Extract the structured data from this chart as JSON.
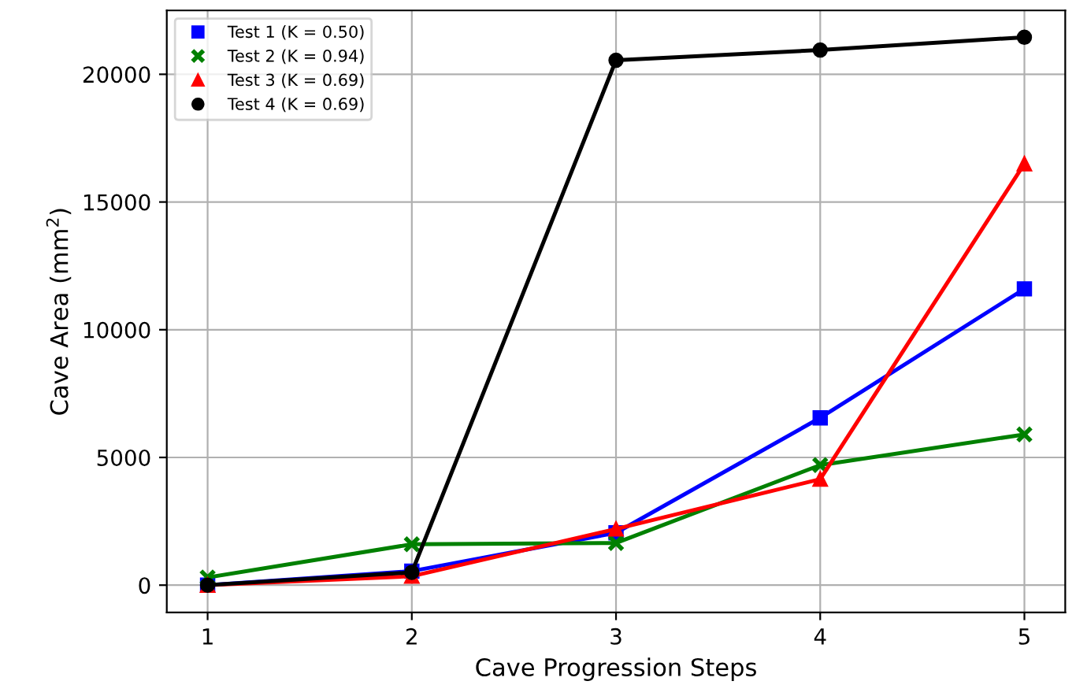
{
  "chart_data": {
    "type": "line",
    "xlabel": "Cave Progression Steps",
    "ylabel": "Cave Area (mm$^{2}$)",
    "x": [
      1,
      2,
      3,
      4,
      5
    ],
    "xlim": [
      0.8,
      5.2
    ],
    "xticks": [
      1,
      2,
      3,
      4,
      5
    ],
    "ylim": [
      -1070,
      22500
    ],
    "yticks": [
      0,
      5000,
      10000,
      15000,
      20000
    ],
    "grid": true,
    "legend": "top left",
    "series": [
      {
        "name": "Test 1 (K = 0.50)",
        "color": "#0000ff",
        "marker": "square",
        "values": [
          0,
          550,
          2050,
          6550,
          11600
        ]
      },
      {
        "name": "Test 2 (K = 0.94)",
        "color": "#008000",
        "marker": "cross",
        "values": [
          300,
          1600,
          1650,
          4700,
          5900
        ]
      },
      {
        "name": "Test 3 (K = 0.69)",
        "color": "#ff0000",
        "marker": "triangle",
        "values": [
          0,
          350,
          2200,
          4150,
          16500
        ]
      },
      {
        "name": "Test 4 (K = 0.69)",
        "color": "#000000",
        "marker": "circle",
        "values": [
          0,
          500,
          20550,
          20950,
          21450
        ]
      }
    ]
  }
}
